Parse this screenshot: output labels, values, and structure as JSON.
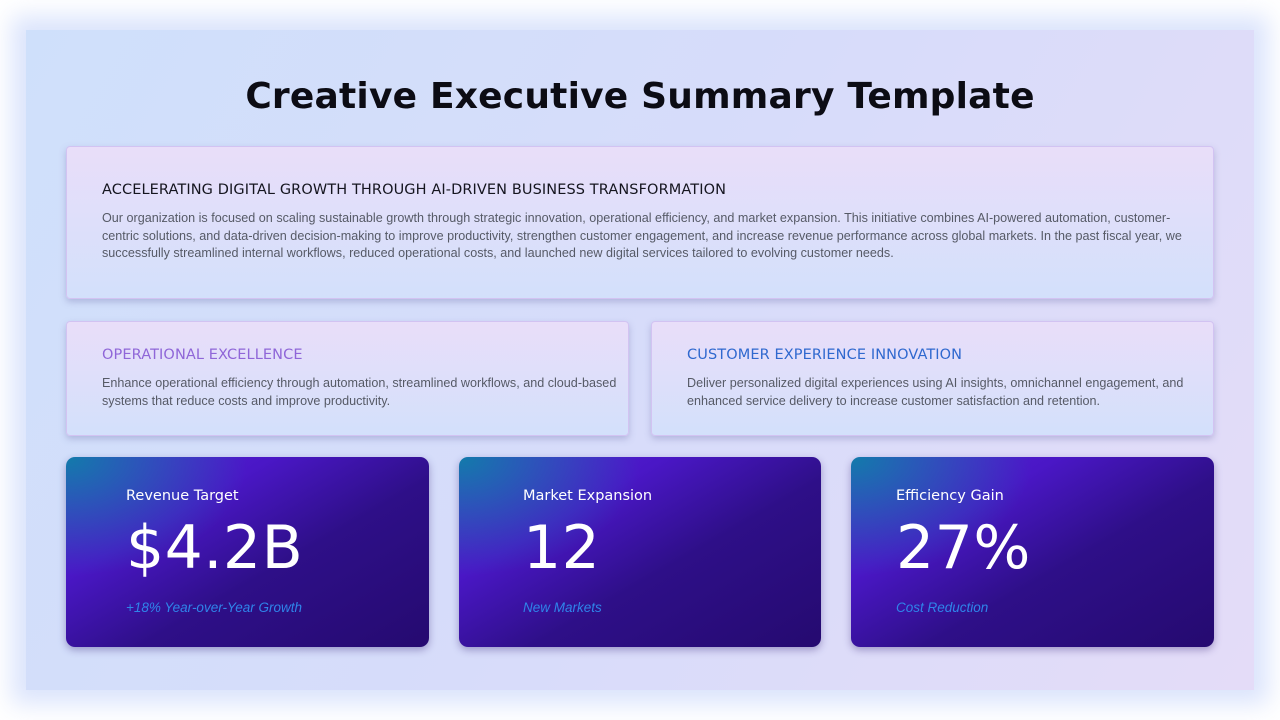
{
  "slide": {
    "title": "Creative Executive Summary Template"
  },
  "overview": {
    "heading": "ACCELERATING DIGITAL GROWTH THROUGH AI-DRIVEN BUSINESS TRANSFORMATION",
    "body": "Our organization is focused on scaling sustainable growth through strategic innovation, operational efficiency, and market expansion. This initiative combines AI-powered automation, customer-centric solutions, and data-driven decision-making to improve productivity, strengthen customer engagement, and increase revenue performance across global markets. In the past fiscal year, we successfully streamlined internal workflows, reduced operational costs, and launched new digital services tailored to evolving customer needs."
  },
  "pillars": [
    {
      "heading": "OPERATIONAL EXCELLENCE",
      "body": "Enhance operational efficiency through automation, streamlined workflows, and cloud-based systems that reduce costs and improve productivity.",
      "color": "#8f66d8"
    },
    {
      "heading": "CUSTOMER EXPERIENCE INNOVATION",
      "body": "Deliver personalized digital experiences using AI insights, omnichannel engagement, and enhanced service delivery to increase customer satisfaction and retention.",
      "color": "#2f68cf"
    }
  ],
  "metrics": [
    {
      "label": "Revenue Target",
      "value": "$4.2B",
      "note": "+18% Year-over-Year Growth"
    },
    {
      "label": "Market Expansion",
      "value": "12",
      "note": "New Markets"
    },
    {
      "label": "Efficiency Gain",
      "value": "27%",
      "note": "Cost Reduction"
    }
  ],
  "colors": {
    "background": "#d7dcfa",
    "metric_card": "#2e0f88",
    "metric_note": "#2f84ea"
  }
}
